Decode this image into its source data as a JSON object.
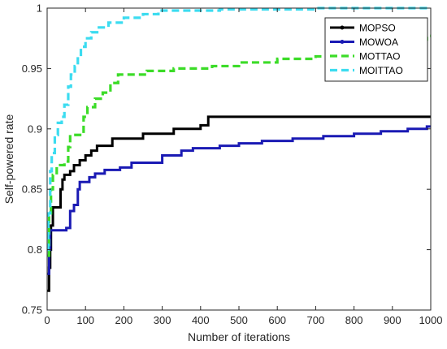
{
  "chart_data": {
    "type": "line",
    "title": "",
    "xlabel": "Number of iterations",
    "ylabel": "Self-powered rate",
    "xlim": [
      0,
      1000
    ],
    "ylim": [
      0.75,
      1.0
    ],
    "xticks": [
      0,
      100,
      200,
      300,
      400,
      500,
      600,
      700,
      800,
      900,
      1000
    ],
    "yticks": [
      0.75,
      0.8,
      0.85,
      0.9,
      0.95,
      1
    ],
    "ytick_labels": [
      "0.75",
      "0.8",
      "0.85",
      "0.9",
      "0.95",
      "1"
    ],
    "grid": false,
    "legend_position": "top-right",
    "series": [
      {
        "name": "MOPSO",
        "color": "#000000",
        "style": "solid-marker",
        "points": [
          [
            0,
            0.766
          ],
          [
            5,
            0.766
          ],
          [
            5,
            0.785
          ],
          [
            8,
            0.785
          ],
          [
            8,
            0.8
          ],
          [
            10,
            0.8
          ],
          [
            10,
            0.82
          ],
          [
            15,
            0.82
          ],
          [
            15,
            0.835
          ],
          [
            35,
            0.835
          ],
          [
            35,
            0.85
          ],
          [
            40,
            0.85
          ],
          [
            40,
            0.858
          ],
          [
            45,
            0.858
          ],
          [
            45,
            0.862
          ],
          [
            60,
            0.862
          ],
          [
            60,
            0.865
          ],
          [
            70,
            0.865
          ],
          [
            70,
            0.87
          ],
          [
            85,
            0.87
          ],
          [
            85,
            0.874
          ],
          [
            100,
            0.874
          ],
          [
            100,
            0.878
          ],
          [
            115,
            0.878
          ],
          [
            115,
            0.882
          ],
          [
            130,
            0.882
          ],
          [
            130,
            0.886
          ],
          [
            170,
            0.886
          ],
          [
            170,
            0.892
          ],
          [
            250,
            0.892
          ],
          [
            250,
            0.896
          ],
          [
            330,
            0.896
          ],
          [
            330,
            0.9
          ],
          [
            400,
            0.9
          ],
          [
            400,
            0.903
          ],
          [
            420,
            0.903
          ],
          [
            420,
            0.91
          ],
          [
            1000,
            0.91
          ]
        ]
      },
      {
        "name": "MOWOA",
        "color": "#1a1ab4",
        "style": "solid-marker",
        "points": [
          [
            0,
            0.78
          ],
          [
            5,
            0.78
          ],
          [
            5,
            0.8
          ],
          [
            8,
            0.8
          ],
          [
            8,
            0.816
          ],
          [
            50,
            0.816
          ],
          [
            50,
            0.818
          ],
          [
            60,
            0.818
          ],
          [
            60,
            0.832
          ],
          [
            70,
            0.832
          ],
          [
            70,
            0.837
          ],
          [
            80,
            0.837
          ],
          [
            80,
            0.85
          ],
          [
            85,
            0.85
          ],
          [
            85,
            0.856
          ],
          [
            110,
            0.856
          ],
          [
            110,
            0.86
          ],
          [
            125,
            0.86
          ],
          [
            125,
            0.863
          ],
          [
            150,
            0.863
          ],
          [
            150,
            0.866
          ],
          [
            190,
            0.866
          ],
          [
            190,
            0.868
          ],
          [
            220,
            0.868
          ],
          [
            220,
            0.872
          ],
          [
            300,
            0.872
          ],
          [
            300,
            0.878
          ],
          [
            350,
            0.878
          ],
          [
            350,
            0.882
          ],
          [
            380,
            0.882
          ],
          [
            380,
            0.884
          ],
          [
            450,
            0.884
          ],
          [
            450,
            0.886
          ],
          [
            500,
            0.886
          ],
          [
            500,
            0.888
          ],
          [
            560,
            0.888
          ],
          [
            560,
            0.89
          ],
          [
            640,
            0.89
          ],
          [
            640,
            0.892
          ],
          [
            720,
            0.892
          ],
          [
            720,
            0.894
          ],
          [
            800,
            0.894
          ],
          [
            800,
            0.896
          ],
          [
            870,
            0.896
          ],
          [
            870,
            0.898
          ],
          [
            940,
            0.898
          ],
          [
            940,
            0.9
          ],
          [
            990,
            0.9
          ],
          [
            990,
            0.902
          ],
          [
            1000,
            0.902
          ]
        ]
      },
      {
        "name": "MOTTAO",
        "color": "#3cdc28",
        "style": "dashed",
        "points": [
          [
            0,
            0.795
          ],
          [
            5,
            0.795
          ],
          [
            5,
            0.83
          ],
          [
            10,
            0.83
          ],
          [
            10,
            0.85
          ],
          [
            15,
            0.85
          ],
          [
            15,
            0.862
          ],
          [
            25,
            0.862
          ],
          [
            25,
            0.87
          ],
          [
            45,
            0.87
          ],
          [
            45,
            0.873
          ],
          [
            55,
            0.873
          ],
          [
            55,
            0.885
          ],
          [
            60,
            0.885
          ],
          [
            60,
            0.895
          ],
          [
            95,
            0.895
          ],
          [
            95,
            0.91
          ],
          [
            105,
            0.91
          ],
          [
            105,
            0.918
          ],
          [
            125,
            0.918
          ],
          [
            125,
            0.925
          ],
          [
            145,
            0.925
          ],
          [
            145,
            0.93
          ],
          [
            165,
            0.93
          ],
          [
            165,
            0.938
          ],
          [
            185,
            0.938
          ],
          [
            185,
            0.945
          ],
          [
            260,
            0.945
          ],
          [
            260,
            0.948
          ],
          [
            330,
            0.948
          ],
          [
            330,
            0.95
          ],
          [
            430,
            0.95
          ],
          [
            430,
            0.952
          ],
          [
            500,
            0.952
          ],
          [
            500,
            0.955
          ],
          [
            600,
            0.955
          ],
          [
            600,
            0.958
          ],
          [
            700,
            0.958
          ],
          [
            700,
            0.96
          ],
          [
            780,
            0.96
          ],
          [
            780,
            0.962
          ],
          [
            850,
            0.962
          ],
          [
            850,
            0.966
          ],
          [
            900,
            0.966
          ],
          [
            900,
            0.97
          ],
          [
            950,
            0.97
          ],
          [
            950,
            0.974
          ],
          [
            990,
            0.974
          ],
          [
            990,
            0.977
          ],
          [
            1000,
            0.977
          ]
        ]
      },
      {
        "name": "MOITTAO",
        "color": "#3cdcf0",
        "style": "dashed",
        "points": [
          [
            0,
            0.8
          ],
          [
            3,
            0.8
          ],
          [
            3,
            0.83
          ],
          [
            8,
            0.83
          ],
          [
            8,
            0.865
          ],
          [
            12,
            0.865
          ],
          [
            12,
            0.88
          ],
          [
            20,
            0.88
          ],
          [
            20,
            0.895
          ],
          [
            28,
            0.895
          ],
          [
            28,
            0.905
          ],
          [
            38,
            0.905
          ],
          [
            38,
            0.91
          ],
          [
            45,
            0.91
          ],
          [
            45,
            0.92
          ],
          [
            55,
            0.92
          ],
          [
            55,
            0.935
          ],
          [
            62,
            0.935
          ],
          [
            62,
            0.945
          ],
          [
            72,
            0.945
          ],
          [
            72,
            0.952
          ],
          [
            80,
            0.952
          ],
          [
            80,
            0.96
          ],
          [
            88,
            0.96
          ],
          [
            88,
            0.968
          ],
          [
            100,
            0.968
          ],
          [
            100,
            0.975
          ],
          [
            115,
            0.975
          ],
          [
            115,
            0.98
          ],
          [
            135,
            0.98
          ],
          [
            135,
            0.984
          ],
          [
            160,
            0.984
          ],
          [
            160,
            0.988
          ],
          [
            200,
            0.988
          ],
          [
            200,
            0.992
          ],
          [
            250,
            0.992
          ],
          [
            250,
            0.995
          ],
          [
            290,
            0.995
          ],
          [
            290,
            0.998
          ],
          [
            450,
            0.998
          ],
          [
            450,
            0.999
          ],
          [
            700,
            0.999
          ],
          [
            700,
            1.0
          ],
          [
            1000,
            1.0
          ]
        ]
      }
    ]
  }
}
